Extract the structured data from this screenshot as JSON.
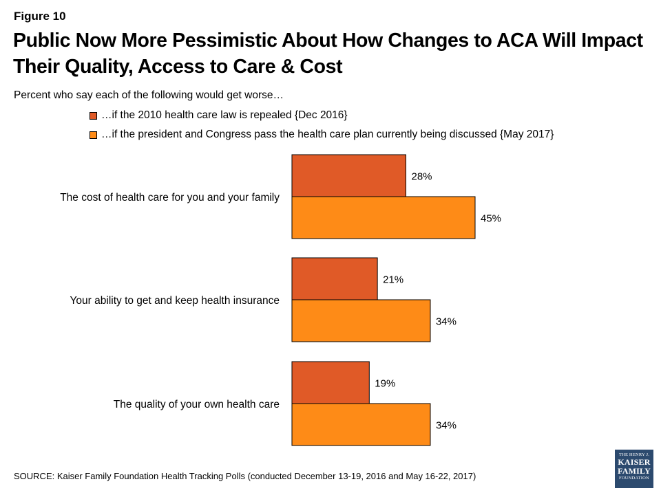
{
  "figure_label": "Figure 10",
  "title": "Public Now More Pessimistic About How Changes to ACA Will Impact Their Quality, Access to Care & Cost",
  "subtitle": "Percent who say each of the following would get worse…",
  "legend": [
    {
      "label": "…if the 2010 health care law is repealed {Dec 2016}",
      "color": "#e05a27"
    },
    {
      "label": "…if the president and Congress pass the health care plan currently being discussed {May 2017}",
      "color": "#fe8b17"
    }
  ],
  "source": "SOURCE: Kaiser Family Foundation Health Tracking Polls (conducted December 13-19, 2016 and May 16-22, 2017)",
  "logo": {
    "line1": "THE HENRY J.",
    "line2": "KAISER",
    "line3": "FAMILY",
    "line4": "FOUNDATION"
  },
  "chart_data": {
    "type": "bar",
    "orientation": "horizontal",
    "categories": [
      "The cost of health care for you and your family",
      "Your ability to get and keep health insurance",
      "The quality of your own health care"
    ],
    "series": [
      {
        "name": "…if the 2010 health care law is repealed {Dec 2016}",
        "values": [
          28,
          21,
          19
        ],
        "color": "#e05a27"
      },
      {
        "name": "…if the president and Congress pass the health care plan currently being discussed {May 2017}",
        "values": [
          45,
          34,
          34
        ],
        "color": "#fe8b17"
      }
    ],
    "value_suffix": "%",
    "xlim": [
      0,
      100
    ],
    "grid": false,
    "legend_position": "top"
  }
}
